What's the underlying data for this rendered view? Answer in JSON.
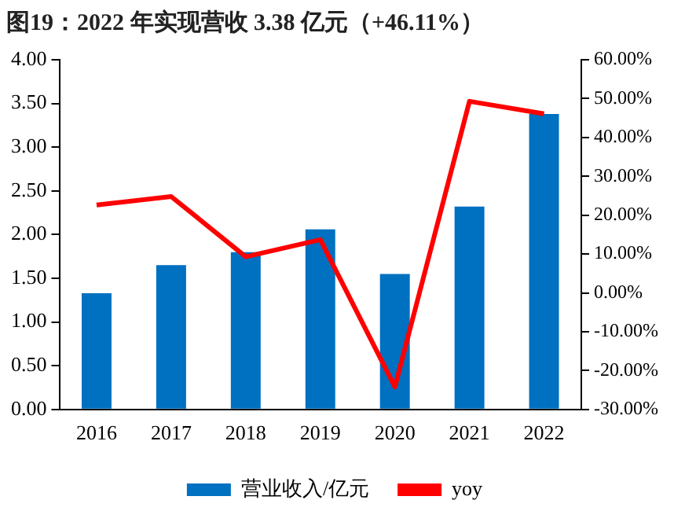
{
  "chart_data": {
    "type": "bar",
    "title": "图19：2022 年实现营收 3.38 亿元（+46.11%）",
    "categories": [
      "2016",
      "2017",
      "2018",
      "2019",
      "2020",
      "2021",
      "2022"
    ],
    "series": [
      {
        "name": "营业收入/亿元",
        "color": "#0070c0",
        "values": [
          1.33,
          1.65,
          1.8,
          2.06,
          1.55,
          2.32,
          3.38
        ]
      },
      {
        "name": "yoy",
        "type": "line",
        "axis": "y2",
        "color": "#ff0000",
        "marker": "none",
        "values": [
          22.6,
          24.8,
          9.3,
          13.7,
          -24.2,
          49.3,
          46.1
        ]
      }
    ],
    "ylim": [
      0,
      4
    ],
    "yticks": [
      {
        "value": 0,
        "label": "0.00"
      },
      {
        "value": 0.5,
        "label": "0.50"
      },
      {
        "value": 1,
        "label": "1.00"
      },
      {
        "value": 1.5,
        "label": "1.50"
      },
      {
        "value": 2,
        "label": "2.00"
      },
      {
        "value": 2.5,
        "label": "2.50"
      },
      {
        "value": 3,
        "label": "3.00"
      },
      {
        "value": 3.5,
        "label": "3.50"
      },
      {
        "value": 4,
        "label": "4.00"
      }
    ],
    "y2lim": [
      -30,
      60
    ],
    "y2ticks": [
      {
        "value": -30,
        "label": "-30.00%"
      },
      {
        "value": -20,
        "label": "-20.00%"
      },
      {
        "value": -10,
        "label": "-10.00%"
      },
      {
        "value": 0,
        "label": "0.00%"
      },
      {
        "value": 10,
        "label": "10.00%"
      },
      {
        "value": 20,
        "label": "20.00%"
      },
      {
        "value": 30,
        "label": "30.00%"
      },
      {
        "value": 40,
        "label": "40.00%"
      },
      {
        "value": 50,
        "label": "50.00%"
      },
      {
        "value": 60,
        "label": "60.00%"
      }
    ],
    "grid": false,
    "legend": "bottom"
  }
}
